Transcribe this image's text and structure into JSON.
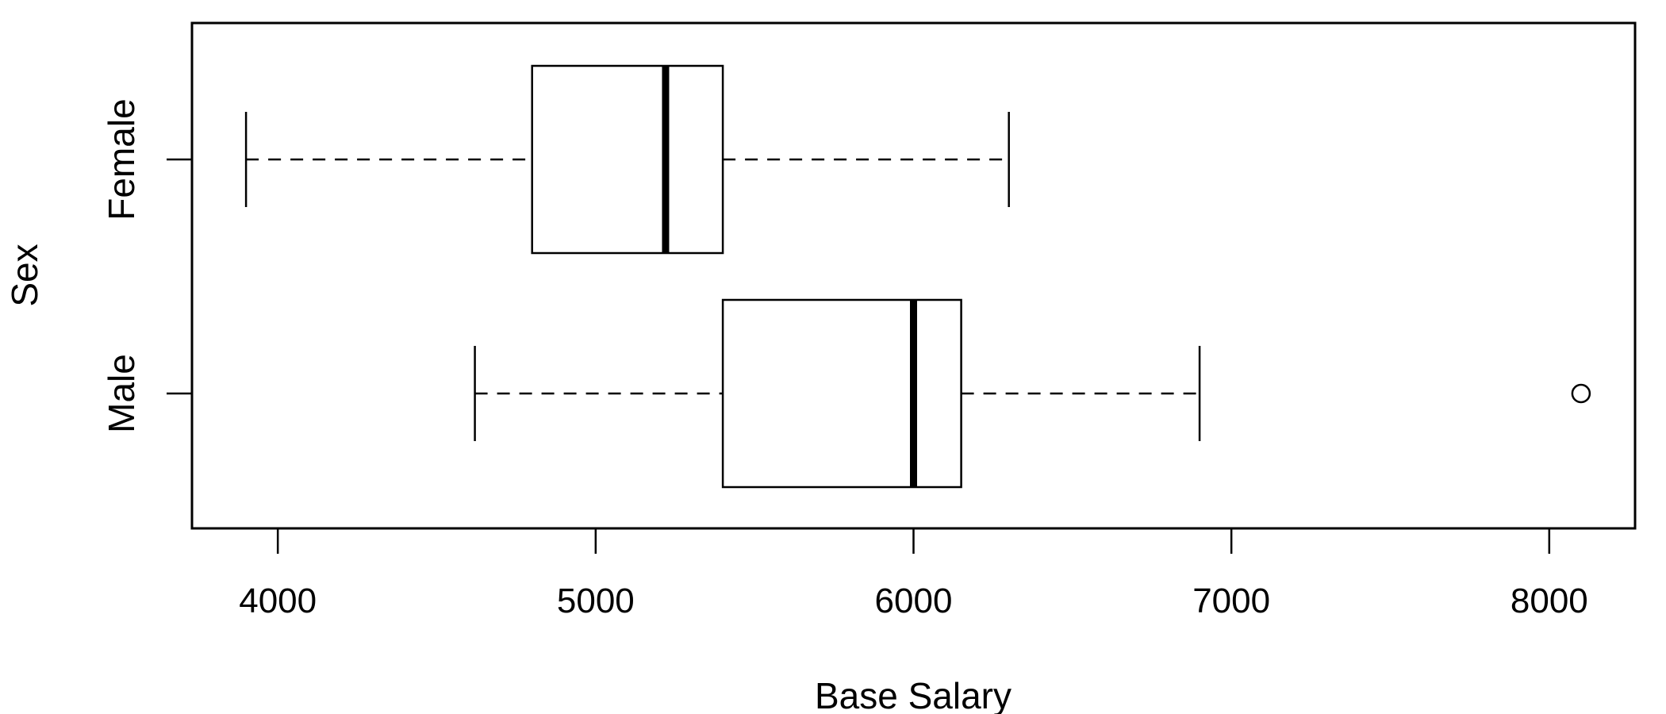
{
  "chart_data": {
    "type": "boxplot",
    "orientation": "horizontal",
    "title": "",
    "xlabel": "Base Salary",
    "ylabel": "Sex",
    "xlim": [
      3730,
      8270
    ],
    "x_ticks": [
      4000,
      5000,
      6000,
      7000,
      8000
    ],
    "x_tick_labels": [
      "4000",
      "5000",
      "6000",
      "7000",
      "8000"
    ],
    "categories": [
      "Female",
      "Male"
    ],
    "boxes": [
      {
        "category": "Female",
        "whisker_low": 3900,
        "q1": 4800,
        "median": 5220,
        "q3": 5400,
        "whisker_high": 6300,
        "outliers": []
      },
      {
        "category": "Male",
        "whisker_low": 4620,
        "q1": 5400,
        "median": 6000,
        "q3": 6150,
        "whisker_high": 6900,
        "outliers": [
          8100
        ]
      }
    ],
    "grid": false,
    "legend": "none"
  }
}
